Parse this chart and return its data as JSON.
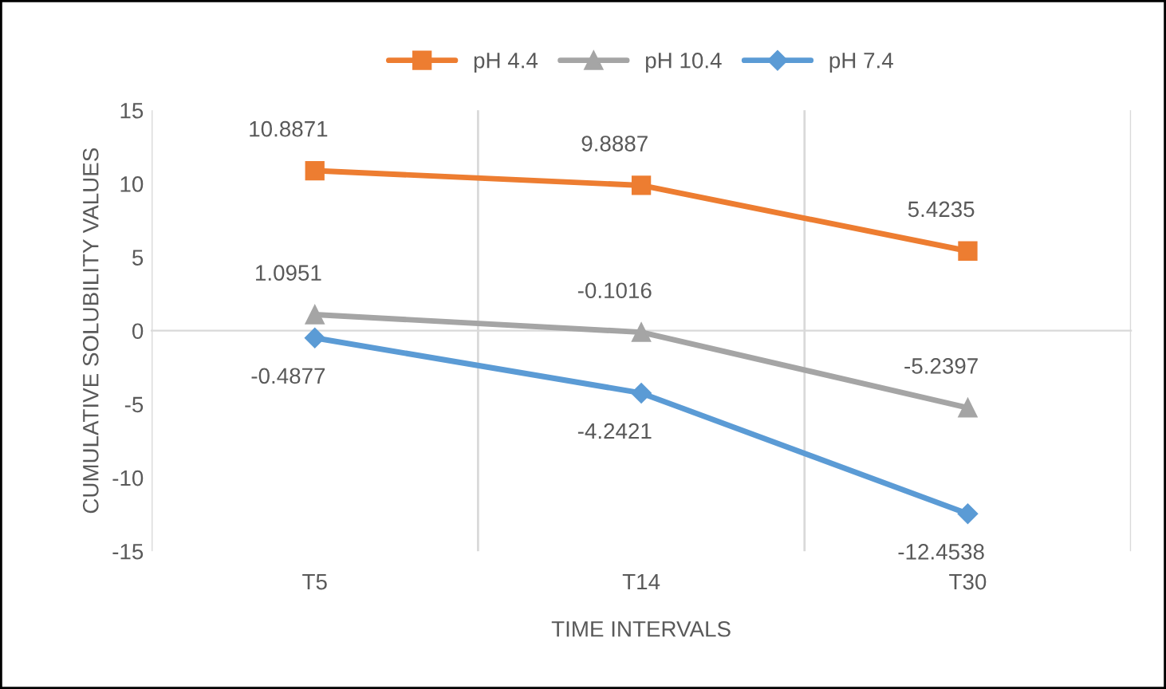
{
  "chart_data": {
    "type": "line",
    "xlabel": "TIME INTERVALS",
    "ylabel": "CUMULATIVE SOLUBILITY VALUES",
    "categories": [
      "T5",
      "T14",
      "T30"
    ],
    "series": [
      {
        "name": "pH 4.4",
        "color": "#ed7d31",
        "marker": "square",
        "values": [
          10.8871,
          9.8887,
          5.4235
        ]
      },
      {
        "name": "pH 10.4",
        "color": "#a5a5a5",
        "marker": "triangle",
        "values": [
          1.0951,
          -0.1016,
          -5.2397
        ]
      },
      {
        "name": "pH 7.4",
        "color": "#5b9bd5",
        "marker": "diamond",
        "values": [
          -0.4877,
          -4.2421,
          -12.4538
        ]
      }
    ],
    "ylim": [
      -15,
      15
    ],
    "yticks": [
      -15,
      -10,
      -5,
      0,
      5,
      10,
      15
    ],
    "grid": "x",
    "legend": "top",
    "line_style": "solid",
    "data_labels": true
  }
}
